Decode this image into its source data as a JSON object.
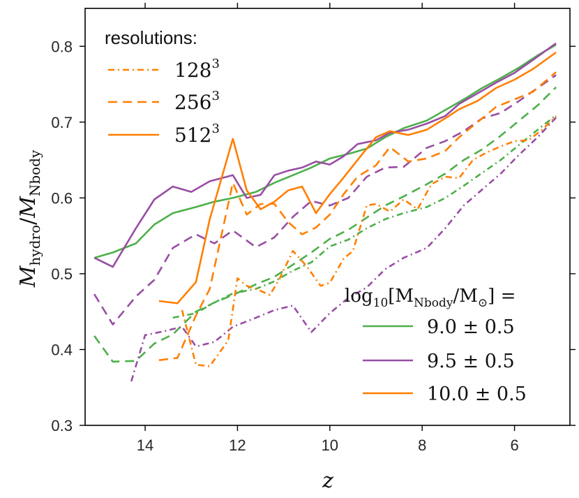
{
  "chart_data": {
    "type": "line",
    "title": "",
    "xlabel": "z",
    "ylabel": "M_hydro / M_Nbody",
    "xlim": [
      15.3,
      4.8
    ],
    "ylim": [
      0.3,
      0.85
    ],
    "xticks": [
      14,
      12,
      10,
      8,
      6
    ],
    "yticks": [
      0.3,
      0.4,
      0.5,
      0.6,
      0.7,
      0.8
    ],
    "xtick_labels": [
      "14",
      "12",
      "10",
      "8",
      "6"
    ],
    "ytick_labels": [
      "0.3",
      "0.4",
      "0.5",
      "0.6",
      "0.7",
      "0.8"
    ],
    "grid": false,
    "colors": {
      "green": "#4daf4a",
      "purple": "#984ea3",
      "orange": "#ff7f00",
      "axis": "#000000"
    },
    "resolution_legend": {
      "title": "resolutions:",
      "entries": [
        {
          "base": "128",
          "exp": "3",
          "dash": "dashdot"
        },
        {
          "base": "256",
          "exp": "3",
          "dash": "dashed"
        },
        {
          "base": "512",
          "exp": "3",
          "dash": "solid"
        }
      ]
    },
    "mass_legend": {
      "title_pre": "log",
      "title_sub": "10",
      "title_main": "[M",
      "title_main_sub": "Nbody",
      "title_post": "/M",
      "title_sun": "⊙",
      "title_end": "] =",
      "entries": [
        {
          "label": "9.0 ± 0.5",
          "color_key": "green"
        },
        {
          "label": "9.5 ± 0.5",
          "color_key": "purple"
        },
        {
          "label": "10.0 ± 0.5",
          "color_key": "orange"
        }
      ]
    },
    "series": [
      {
        "name": "9.0±0.5 512^3",
        "mass": "green",
        "res": "solid",
        "x": [
          15.1,
          14.7,
          14.2,
          13.8,
          13.4,
          12.9,
          12.5,
          12.1,
          11.6,
          11.2,
          10.8,
          10.4,
          10.0,
          9.6,
          9.2,
          8.8,
          8.4,
          7.9,
          7.5,
          7.1,
          6.7,
          6.3,
          5.9,
          5.5,
          5.1
        ],
        "y": [
          0.521,
          0.528,
          0.54,
          0.565,
          0.58,
          0.588,
          0.595,
          0.6,
          0.608,
          0.62,
          0.63,
          0.64,
          0.652,
          0.658,
          0.665,
          0.68,
          0.692,
          0.702,
          0.716,
          0.73,
          0.745,
          0.758,
          0.772,
          0.788,
          0.802
        ]
      },
      {
        "name": "9.0±0.5 256^3",
        "mass": "green",
        "res": "dashed",
        "x": [
          15.1,
          14.7,
          14.2,
          13.8,
          13.4,
          12.9,
          12.5,
          12.1,
          11.6,
          11.2,
          10.8,
          10.4,
          10.0,
          9.6,
          9.2,
          8.8,
          8.4,
          7.9,
          7.5,
          7.1,
          6.7,
          6.3,
          5.9,
          5.5,
          5.1
        ],
        "y": [
          0.418,
          0.384,
          0.385,
          0.408,
          0.42,
          0.45,
          0.462,
          0.472,
          0.486,
          0.496,
          0.512,
          0.528,
          0.546,
          0.558,
          0.574,
          0.59,
          0.602,
          0.618,
          0.632,
          0.65,
          0.664,
          0.682,
          0.702,
          0.722,
          0.746
        ]
      },
      {
        "name": "9.0±0.5 128^3",
        "mass": "green",
        "res": "dashdot",
        "x": [
          13.4,
          12.9,
          12.5,
          12.1,
          11.6,
          11.2,
          10.8,
          10.4,
          10.0,
          9.6,
          9.2,
          8.8,
          8.4,
          7.9,
          7.5,
          7.1,
          6.7,
          6.3,
          5.9,
          5.5,
          5.1
        ],
        "y": [
          0.442,
          0.448,
          0.462,
          0.474,
          0.48,
          0.49,
          0.504,
          0.515,
          0.536,
          0.545,
          0.56,
          0.572,
          0.58,
          0.588,
          0.6,
          0.616,
          0.633,
          0.65,
          0.67,
          0.69,
          0.709
        ]
      },
      {
        "name": "9.5±0.5 512^3",
        "mass": "purple",
        "res": "solid",
        "x": [
          15.1,
          14.7,
          14.2,
          13.8,
          13.4,
          13.0,
          12.6,
          12.1,
          11.8,
          11.5,
          11.2,
          10.9,
          10.6,
          10.3,
          10.0,
          9.7,
          9.4,
          9.0,
          8.7,
          8.3,
          7.9,
          7.5,
          7.2,
          6.8,
          6.4,
          6.0,
          5.6,
          5.1
        ],
        "y": [
          0.521,
          0.509,
          0.56,
          0.598,
          0.615,
          0.608,
          0.622,
          0.63,
          0.6,
          0.604,
          0.63,
          0.636,
          0.64,
          0.648,
          0.644,
          0.655,
          0.671,
          0.676,
          0.686,
          0.69,
          0.698,
          0.708,
          0.724,
          0.738,
          0.752,
          0.765,
          0.782,
          0.804
        ]
      },
      {
        "name": "9.5±0.5 256^3",
        "mass": "purple",
        "res": "dashed",
        "x": [
          15.1,
          14.7,
          14.2,
          13.8,
          13.4,
          12.9,
          12.5,
          12.1,
          11.6,
          11.2,
          10.8,
          10.4,
          10.0,
          9.6,
          9.2,
          8.8,
          8.4,
          7.9,
          7.5,
          7.1,
          6.7,
          6.3,
          5.9,
          5.5,
          5.1
        ],
        "y": [
          0.473,
          0.433,
          0.47,
          0.492,
          0.534,
          0.552,
          0.54,
          0.557,
          0.535,
          0.548,
          0.575,
          0.596,
          0.59,
          0.6,
          0.628,
          0.64,
          0.641,
          0.666,
          0.675,
          0.688,
          0.705,
          0.712,
          0.728,
          0.745,
          0.762
        ]
      },
      {
        "name": "9.5±0.5 128^3",
        "mass": "purple",
        "res": "dashdot",
        "x": [
          14.3,
          14.0,
          13.6,
          13.2,
          12.9,
          12.5,
          12.1,
          11.6,
          11.2,
          10.8,
          10.4,
          10.0,
          9.6,
          9.2,
          8.8,
          8.4,
          7.9,
          7.5,
          7.1,
          6.7,
          6.3,
          5.9,
          5.5,
          5.1
        ],
        "y": [
          0.358,
          0.419,
          0.424,
          0.43,
          0.404,
          0.41,
          0.43,
          0.442,
          0.452,
          0.458,
          0.423,
          0.448,
          0.468,
          0.482,
          0.506,
          0.521,
          0.534,
          0.56,
          0.59,
          0.611,
          0.632,
          0.657,
          0.68,
          0.706
        ]
      },
      {
        "name": "10.0±0.5 512^3",
        "mass": "orange",
        "res": "solid",
        "x": [
          13.7,
          13.3,
          12.9,
          12.6,
          12.1,
          11.8,
          11.5,
          11.2,
          10.9,
          10.6,
          10.3,
          10.0,
          9.7,
          9.4,
          9.0,
          8.7,
          8.3,
          7.9,
          7.5,
          7.2,
          6.8,
          6.4,
          6.0,
          5.6,
          5.1
        ],
        "y": [
          0.464,
          0.461,
          0.489,
          0.572,
          0.678,
          0.61,
          0.585,
          0.595,
          0.61,
          0.615,
          0.58,
          0.605,
          0.627,
          0.65,
          0.68,
          0.688,
          0.683,
          0.69,
          0.705,
          0.717,
          0.728,
          0.745,
          0.756,
          0.77,
          0.792
        ]
      },
      {
        "name": "10.0±0.5 256^3",
        "mass": "orange",
        "res": "dashed",
        "x": [
          13.7,
          13.3,
          12.9,
          12.6,
          12.1,
          11.8,
          11.5,
          11.2,
          10.9,
          10.6,
          10.3,
          10.0,
          9.7,
          9.4,
          9.0,
          8.7,
          8.3,
          7.9,
          7.5,
          7.2,
          6.8,
          6.4,
          6.0,
          5.6,
          5.1
        ],
        "y": [
          0.386,
          0.389,
          0.445,
          0.48,
          0.62,
          0.578,
          0.592,
          0.592,
          0.568,
          0.552,
          0.561,
          0.578,
          0.605,
          0.628,
          0.643,
          0.667,
          0.648,
          0.652,
          0.662,
          0.68,
          0.7,
          0.72,
          0.73,
          0.74,
          0.766
        ]
      },
      {
        "name": "10.0±0.5 128^3",
        "mass": "orange",
        "res": "dashdot",
        "x": [
          13.2,
          12.9,
          12.6,
          12.2,
          12.0,
          11.8,
          11.6,
          11.3,
          11.1,
          10.8,
          10.5,
          10.2,
          10.0,
          9.7,
          9.5,
          9.2,
          9.0,
          8.7,
          8.4,
          8.1,
          7.8,
          7.5,
          7.2,
          6.9,
          6.6,
          6.3,
          6.0,
          5.7,
          5.4,
          5.1
        ],
        "y": [
          0.452,
          0.38,
          0.378,
          0.412,
          0.494,
          0.484,
          0.48,
          0.472,
          0.492,
          0.53,
          0.51,
          0.484,
          0.488,
          0.52,
          0.53,
          0.59,
          0.592,
          0.582,
          0.598,
          0.585,
          0.618,
          0.628,
          0.626,
          0.65,
          0.66,
          0.668,
          0.675,
          0.676,
          0.69,
          0.708
        ]
      }
    ]
  }
}
